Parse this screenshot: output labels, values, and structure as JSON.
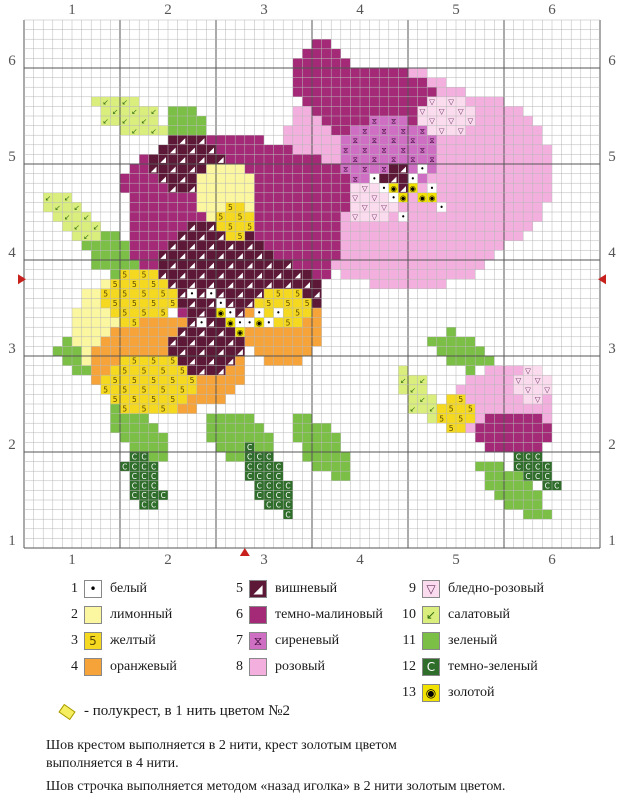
{
  "grid": {
    "top_numbers": [
      "1",
      "2",
      "3",
      "4",
      "5",
      "6"
    ],
    "side_numbers": [
      "6",
      "5",
      "4",
      "3",
      "2",
      "1"
    ],
    "bottom_numbers": [
      "1",
      "2",
      "3",
      "4",
      "5",
      "6"
    ]
  },
  "legend": {
    "items": [
      {
        "num": "1",
        "label": "белый",
        "color": "#ffffff",
        "symbol": "•",
        "symbol_color": "#000000"
      },
      {
        "num": "2",
        "label": "лимонный",
        "color": "#fbf6a0",
        "symbol": "",
        "symbol_color": "#000000"
      },
      {
        "num": "3",
        "label": "желтый",
        "color": "#f5d820",
        "symbol": "5",
        "symbol_color": "#5a4a00"
      },
      {
        "num": "4",
        "label": "оранжевый",
        "color": "#f6a43a",
        "symbol": "",
        "symbol_color": "#000000"
      },
      {
        "num": "5",
        "label": "вишневый",
        "color": "#5c1836",
        "symbol": "◢",
        "symbol_color": "#ffffff"
      },
      {
        "num": "6",
        "label": "темно-малиновый",
        "color": "#a42a78",
        "symbol": "",
        "symbol_color": "#000000"
      },
      {
        "num": "7",
        "label": "сиреневый",
        "color": "#cf6fc4",
        "symbol": "⧖",
        "symbol_color": "#3a0a36"
      },
      {
        "num": "8",
        "label": "розовый",
        "color": "#f3b0df",
        "symbol": "",
        "symbol_color": "#000000"
      },
      {
        "num": "9",
        "label": "бледно-розовый",
        "color": "#fbdcef",
        "symbol": "▽",
        "symbol_color": "#6a3060"
      },
      {
        "num": "10",
        "label": "салатовый",
        "color": "#d9ee7c",
        "symbol": "↙",
        "symbol_color": "#2e6b10"
      },
      {
        "num": "11",
        "label": "зеленый",
        "color": "#7cbf46",
        "symbol": "",
        "symbol_color": "#000000"
      },
      {
        "num": "12",
        "label": "темно-зеленый",
        "color": "#2f6d2a",
        "symbol": "C",
        "symbol_color": "#ffffff"
      },
      {
        "num": "13",
        "label": "золотой",
        "color": "#f2e200",
        "symbol": "◉",
        "symbol_color": "#000000"
      }
    ]
  },
  "notes": {
    "half_cross": "- полукрест, в 1 нить цветом №2",
    "line1": "Шов крестом выполняется в 2 нити, крест  золотым  цветом",
    "line2": "выполняется в 4 нити.",
    "line3": "Шов строчка выполняется методом «назад иголка» в 2 нити золотым цветом."
  }
}
